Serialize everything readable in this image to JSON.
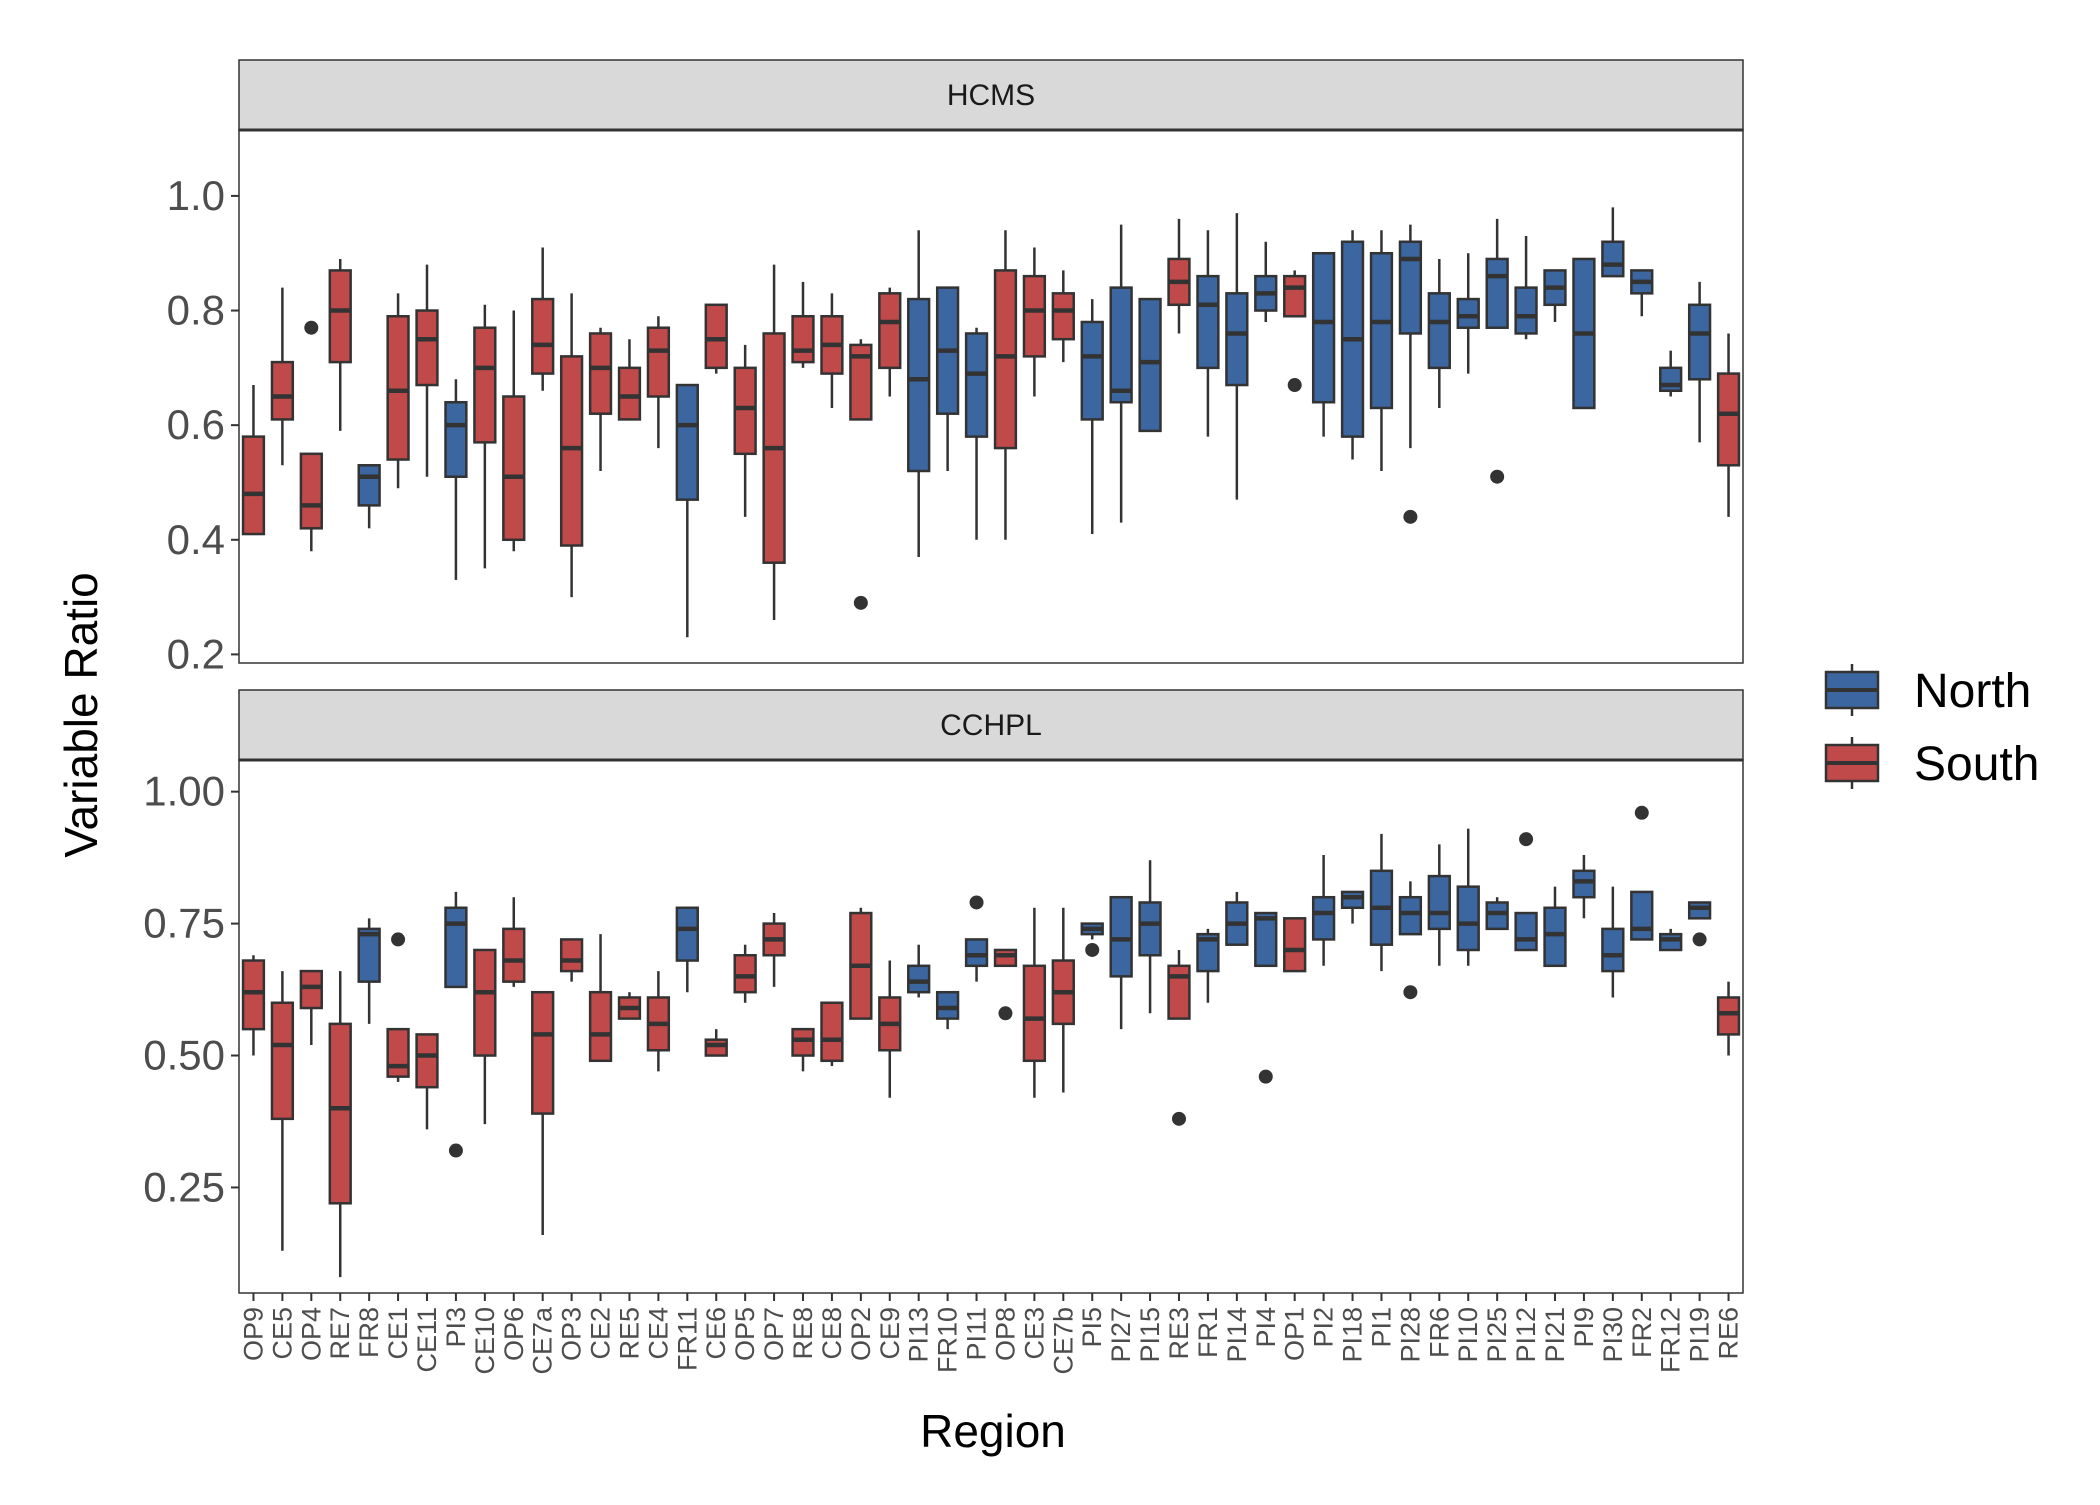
{
  "colors": {
    "North": "#3B66A0",
    "South": "#C04949",
    "outline": "#333333",
    "strip_bg": "#D9D9D9",
    "panel_border": "#333333"
  },
  "chart_data": {
    "type": "boxplot",
    "xlabel": "Region",
    "ylabel": "Variable Ratio",
    "legend": {
      "position": "right",
      "entries": [
        {
          "name": "North",
          "color": "#3B66A0"
        },
        {
          "name": "South",
          "color": "#C04949"
        }
      ]
    },
    "categories": [
      "OP9",
      "CE5",
      "OP4",
      "RE7",
      "FR8",
      "CE1",
      "CE11",
      "PI3",
      "CE10",
      "OP6",
      "CE7a",
      "OP3",
      "CE2",
      "RE5",
      "CE4",
      "FR11",
      "CE6",
      "OP5",
      "OP7",
      "RE8",
      "CE8",
      "OP2",
      "CE9",
      "PI13",
      "FR10",
      "PI11",
      "OP8",
      "CE3",
      "CE7b",
      "PI5",
      "PI27",
      "PI15",
      "RE3",
      "FR1",
      "PI14",
      "PI4",
      "OP1",
      "PI2",
      "PI18",
      "PI1",
      "PI28",
      "FR6",
      "PI10",
      "PI25",
      "PI12",
      "PI21",
      "PI9",
      "PI30",
      "FR2",
      "FR12",
      "PI19",
      "RE6"
    ],
    "groups": [
      "S",
      "S",
      "S",
      "S",
      "N",
      "S",
      "S",
      "N",
      "S",
      "S",
      "S",
      "S",
      "S",
      "S",
      "S",
      "N",
      "S",
      "S",
      "S",
      "S",
      "S",
      "S",
      "S",
      "N",
      "N",
      "N",
      "S",
      "S",
      "S",
      "N",
      "N",
      "N",
      "S",
      "N",
      "N",
      "N",
      "S",
      "N",
      "N",
      "N",
      "N",
      "N",
      "N",
      "N",
      "N",
      "N",
      "N",
      "N",
      "N",
      "N",
      "N",
      "S"
    ],
    "panels": [
      {
        "strip_label": "HCMS",
        "ylim": [
          0.185,
          1.115
        ],
        "yticks": [
          0.2,
          0.4,
          0.6,
          0.8,
          1.0
        ],
        "ytick_labels": [
          "0.2",
          "0.4",
          "0.6",
          "0.8",
          "1.0"
        ],
        "boxes": [
          [
            0.41,
            0.41,
            0.48,
            0.58,
            0.67
          ],
          [
            0.53,
            0.61,
            0.65,
            0.71,
            0.84
          ],
          [
            0.38,
            0.42,
            0.46,
            0.55,
            0.55
          ],
          [
            0.59,
            0.71,
            0.8,
            0.87,
            0.89
          ],
          [
            0.42,
            0.46,
            0.51,
            0.53,
            0.53
          ],
          [
            0.49,
            0.54,
            0.66,
            0.79,
            0.83
          ],
          [
            0.51,
            0.67,
            0.75,
            0.8,
            0.88
          ],
          [
            0.33,
            0.51,
            0.6,
            0.64,
            0.68
          ],
          [
            0.35,
            0.57,
            0.7,
            0.77,
            0.81
          ],
          [
            0.38,
            0.4,
            0.51,
            0.65,
            0.8
          ],
          [
            0.66,
            0.69,
            0.74,
            0.82,
            0.91
          ],
          [
            0.3,
            0.39,
            0.56,
            0.72,
            0.83
          ],
          [
            0.52,
            0.62,
            0.7,
            0.76,
            0.77
          ],
          [
            0.61,
            0.61,
            0.65,
            0.7,
            0.75
          ],
          [
            0.56,
            0.65,
            0.73,
            0.77,
            0.79
          ],
          [
            0.23,
            0.47,
            0.6,
            0.67,
            0.67
          ],
          [
            0.69,
            0.7,
            0.75,
            0.81,
            0.81
          ],
          [
            0.44,
            0.55,
            0.63,
            0.7,
            0.74
          ],
          [
            0.26,
            0.36,
            0.56,
            0.76,
            0.88
          ],
          [
            0.7,
            0.71,
            0.73,
            0.79,
            0.85
          ],
          [
            0.63,
            0.69,
            0.74,
            0.79,
            0.83
          ],
          [
            0.61,
            0.61,
            0.72,
            0.74,
            0.75
          ],
          [
            0.65,
            0.7,
            0.78,
            0.83,
            0.84
          ],
          [
            0.37,
            0.52,
            0.68,
            0.82,
            0.94
          ],
          [
            0.52,
            0.62,
            0.73,
            0.84,
            0.84
          ],
          [
            0.4,
            0.58,
            0.69,
            0.76,
            0.77
          ],
          [
            0.4,
            0.56,
            0.72,
            0.87,
            0.94
          ],
          [
            0.65,
            0.72,
            0.8,
            0.86,
            0.91
          ],
          [
            0.71,
            0.75,
            0.8,
            0.83,
            0.87
          ],
          [
            0.41,
            0.61,
            0.72,
            0.78,
            0.82
          ],
          [
            0.43,
            0.64,
            0.66,
            0.84,
            0.95
          ],
          [
            0.59,
            0.59,
            0.71,
            0.82,
            0.82
          ],
          [
            0.76,
            0.81,
            0.85,
            0.89,
            0.96
          ],
          [
            0.58,
            0.7,
            0.81,
            0.86,
            0.94
          ],
          [
            0.47,
            0.67,
            0.76,
            0.83,
            0.97
          ],
          [
            0.78,
            0.8,
            0.83,
            0.86,
            0.92
          ],
          [
            0.79,
            0.79,
            0.84,
            0.86,
            0.87
          ],
          [
            0.58,
            0.64,
            0.78,
            0.9,
            0.9
          ],
          [
            0.54,
            0.58,
            0.75,
            0.92,
            0.94
          ],
          [
            0.52,
            0.63,
            0.78,
            0.9,
            0.94
          ],
          [
            0.56,
            0.76,
            0.89,
            0.92,
            0.95
          ],
          [
            0.63,
            0.7,
            0.78,
            0.83,
            0.89
          ],
          [
            0.69,
            0.77,
            0.79,
            0.82,
            0.9
          ],
          [
            0.77,
            0.77,
            0.86,
            0.89,
            0.96
          ],
          [
            0.75,
            0.76,
            0.79,
            0.84,
            0.93
          ],
          [
            0.78,
            0.81,
            0.84,
            0.87,
            0.87
          ],
          [
            0.63,
            0.63,
            0.76,
            0.89,
            0.89
          ],
          [
            0.86,
            0.86,
            0.88,
            0.92,
            0.98
          ],
          [
            0.79,
            0.83,
            0.85,
            0.87,
            0.87
          ],
          [
            0.65,
            0.66,
            0.67,
            0.7,
            0.73
          ],
          [
            0.57,
            0.68,
            0.76,
            0.81,
            0.85
          ],
          [
            0.44,
            0.53,
            0.62,
            0.69,
            0.76
          ]
        ],
        "outliers": [
          {
            "index": 2,
            "value": 0.77
          },
          {
            "index": 21,
            "value": 0.29
          },
          {
            "index": 36,
            "value": 0.67
          },
          {
            "index": 40,
            "value": 0.44
          },
          {
            "index": 43,
            "value": 0.51
          }
        ]
      },
      {
        "strip_label": "CCHPL",
        "ylim": [
          0.05,
          1.06
        ],
        "yticks": [
          0.25,
          0.5,
          0.75,
          1.0
        ],
        "ytick_labels": [
          "0.25",
          "0.50",
          "0.75",
          "1.00"
        ],
        "boxes": [
          [
            0.5,
            0.55,
            0.62,
            0.68,
            0.69
          ],
          [
            0.13,
            0.38,
            0.52,
            0.6,
            0.66
          ],
          [
            0.52,
            0.59,
            0.63,
            0.66,
            0.66
          ],
          [
            0.08,
            0.22,
            0.4,
            0.56,
            0.66
          ],
          [
            0.56,
            0.64,
            0.73,
            0.74,
            0.76
          ],
          [
            0.45,
            0.46,
            0.48,
            0.55,
            0.55
          ],
          [
            0.36,
            0.44,
            0.5,
            0.54,
            0.54
          ],
          [
            0.63,
            0.63,
            0.75,
            0.78,
            0.81
          ],
          [
            0.37,
            0.5,
            0.62,
            0.7,
            0.7
          ],
          [
            0.63,
            0.64,
            0.68,
            0.74,
            0.8
          ],
          [
            0.16,
            0.39,
            0.54,
            0.62,
            0.62
          ],
          [
            0.64,
            0.66,
            0.68,
            0.72,
            0.72
          ],
          [
            0.49,
            0.49,
            0.54,
            0.62,
            0.73
          ],
          [
            0.57,
            0.57,
            0.59,
            0.61,
            0.62
          ],
          [
            0.47,
            0.51,
            0.56,
            0.61,
            0.66
          ],
          [
            0.62,
            0.68,
            0.74,
            0.78,
            0.78
          ],
          [
            0.5,
            0.5,
            0.52,
            0.53,
            0.55
          ],
          [
            0.6,
            0.62,
            0.65,
            0.69,
            0.71
          ],
          [
            0.63,
            0.69,
            0.72,
            0.75,
            0.77
          ],
          [
            0.47,
            0.5,
            0.53,
            0.55,
            0.55
          ],
          [
            0.48,
            0.49,
            0.53,
            0.6,
            0.6
          ],
          [
            0.57,
            0.57,
            0.67,
            0.77,
            0.78
          ],
          [
            0.42,
            0.51,
            0.56,
            0.61,
            0.68
          ],
          [
            0.61,
            0.62,
            0.64,
            0.67,
            0.71
          ],
          [
            0.55,
            0.57,
            0.59,
            0.62,
            0.62
          ],
          [
            0.64,
            0.67,
            0.69,
            0.72,
            0.72
          ],
          [
            0.67,
            0.67,
            0.69,
            0.7,
            0.7
          ],
          [
            0.42,
            0.49,
            0.57,
            0.67,
            0.78
          ],
          [
            0.43,
            0.56,
            0.62,
            0.68,
            0.78
          ],
          [
            0.72,
            0.73,
            0.74,
            0.75,
            0.75
          ],
          [
            0.55,
            0.65,
            0.72,
            0.8,
            0.8
          ],
          [
            0.58,
            0.69,
            0.75,
            0.79,
            0.87
          ],
          [
            0.57,
            0.57,
            0.65,
            0.67,
            0.7
          ],
          [
            0.6,
            0.66,
            0.72,
            0.73,
            0.74
          ],
          [
            0.71,
            0.71,
            0.75,
            0.79,
            0.81
          ],
          [
            0.67,
            0.67,
            0.76,
            0.77,
            0.77
          ],
          [
            0.66,
            0.66,
            0.7,
            0.76,
            0.76
          ],
          [
            0.67,
            0.72,
            0.77,
            0.8,
            0.88
          ],
          [
            0.75,
            0.78,
            0.8,
            0.81,
            0.81
          ],
          [
            0.66,
            0.71,
            0.78,
            0.85,
            0.92
          ],
          [
            0.73,
            0.73,
            0.77,
            0.8,
            0.83
          ],
          [
            0.67,
            0.74,
            0.77,
            0.84,
            0.9
          ],
          [
            0.67,
            0.7,
            0.75,
            0.82,
            0.93
          ],
          [
            0.74,
            0.74,
            0.77,
            0.79,
            0.8
          ],
          [
            0.7,
            0.7,
            0.72,
            0.77,
            0.77
          ],
          [
            0.67,
            0.67,
            0.73,
            0.78,
            0.82
          ],
          [
            0.76,
            0.8,
            0.83,
            0.85,
            0.88
          ],
          [
            0.61,
            0.66,
            0.69,
            0.74,
            0.82
          ],
          [
            0.72,
            0.72,
            0.74,
            0.81,
            0.81
          ],
          [
            0.7,
            0.7,
            0.72,
            0.73,
            0.74
          ],
          [
            0.76,
            0.76,
            0.78,
            0.79,
            0.79
          ],
          [
            0.5,
            0.54,
            0.58,
            0.61,
            0.64
          ]
        ],
        "outliers": [
          {
            "index": 5,
            "value": 0.72
          },
          {
            "index": 7,
            "value": 0.32
          },
          {
            "index": 25,
            "value": 0.79
          },
          {
            "index": 26,
            "value": 0.58
          },
          {
            "index": 29,
            "value": 0.7
          },
          {
            "index": 32,
            "value": 0.38
          },
          {
            "index": 35,
            "value": 0.46
          },
          {
            "index": 40,
            "value": 0.62
          },
          {
            "index": 44,
            "value": 0.91
          },
          {
            "index": 48,
            "value": 0.96
          },
          {
            "index": 50,
            "value": 0.72
          }
        ]
      }
    ]
  }
}
